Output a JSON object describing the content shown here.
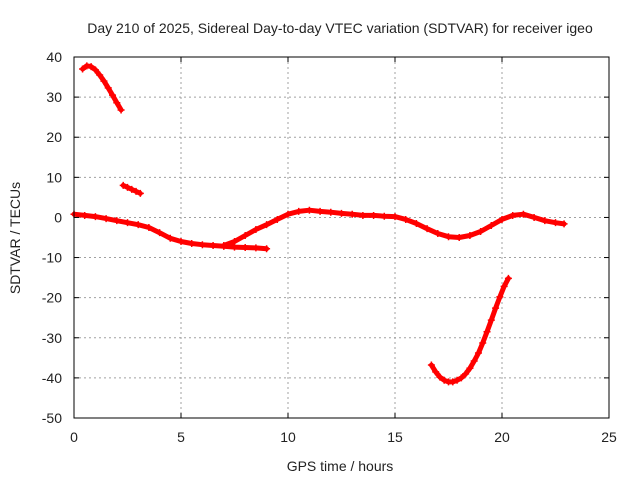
{
  "chart_data": {
    "type": "scatter",
    "title": "Day 210 of 2025, Sidereal Day-to-day VTEC variation (SDTVAR) for receiver igeo",
    "xlabel": "GPS time / hours",
    "ylabel": "SDTVAR / TECUs",
    "xlim": [
      0,
      25
    ],
    "ylim": [
      -50,
      40
    ],
    "x_ticks": [
      0,
      5,
      10,
      15,
      20,
      25
    ],
    "y_ticks": [
      -50,
      -40,
      -30,
      -20,
      -10,
      0,
      10,
      20,
      30,
      40
    ],
    "grid": true,
    "marker": "plus",
    "color": "#ff0000",
    "series": [
      {
        "name": "segment-1",
        "x": [
          0.4,
          0.6,
          0.8,
          1.0,
          1.2,
          1.4,
          1.6,
          1.8,
          2.0,
          2.2
        ],
        "y": [
          37,
          37.8,
          37.6,
          36.8,
          35.5,
          34,
          32.3,
          30.5,
          28.6,
          26.8
        ]
      },
      {
        "name": "segment-2",
        "x": [
          2.3,
          2.5,
          2.7,
          2.9,
          3.1
        ],
        "y": [
          8,
          7.5,
          7,
          6.5,
          6
        ]
      },
      {
        "name": "segment-3",
        "x": [
          0.0,
          0.5,
          1.0,
          1.5,
          2.0,
          2.5,
          3.0,
          3.5,
          4.0,
          4.5,
          5.0,
          5.5,
          6.0,
          6.5,
          7.0,
          7.5,
          8.0,
          8.5,
          9.0
        ],
        "y": [
          0.8,
          0.5,
          0.2,
          -0.3,
          -0.8,
          -1.3,
          -1.8,
          -2.5,
          -3.8,
          -5.2,
          -6,
          -6.5,
          -6.8,
          -7,
          -7.2,
          -7.4,
          -7.5,
          -7.6,
          -7.8
        ]
      },
      {
        "name": "segment-4",
        "x": [
          7.0,
          7.5,
          8.0,
          8.5,
          9.0,
          9.5,
          10.0,
          10.5,
          11.0,
          11.5,
          12.0,
          12.5,
          13.0,
          13.5,
          14.0,
          14.5,
          15.0,
          15.5,
          16.0,
          16.5,
          17.0,
          17.5,
          18.0,
          18.5,
          19.0,
          19.5,
          20.0,
          20.5,
          21.0,
          21.5,
          22.0,
          22.5,
          22.9
        ],
        "y": [
          -7,
          -6,
          -4.5,
          -3,
          -1.8,
          -0.5,
          0.8,
          1.5,
          1.8,
          1.5,
          1.3,
          1.0,
          0.8,
          0.5,
          0.5,
          0.3,
          0.2,
          -0.5,
          -1.5,
          -2.8,
          -4,
          -4.8,
          -5,
          -4.5,
          -3.5,
          -2,
          -0.5,
          0.5,
          0.8,
          0,
          -0.8,
          -1.3,
          -1.6
        ]
      },
      {
        "name": "segment-5",
        "x": [
          16.7,
          16.9,
          17.1,
          17.3,
          17.5,
          17.7,
          17.9,
          18.1,
          18.3,
          18.5,
          18.7,
          18.9,
          19.1,
          19.3,
          19.5,
          19.7,
          19.9,
          20.1,
          20.3
        ],
        "y": [
          -36.8,
          -38.5,
          -39.8,
          -40.6,
          -41,
          -41,
          -40.6,
          -40,
          -39,
          -37.6,
          -35.8,
          -33.8,
          -31.3,
          -28.5,
          -25.6,
          -22.6,
          -19.8,
          -17.2,
          -15.2
        ]
      }
    ]
  }
}
